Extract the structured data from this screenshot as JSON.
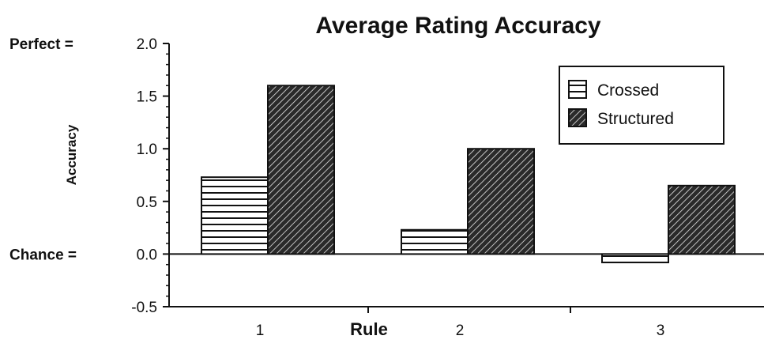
{
  "chart_data": {
    "type": "bar",
    "title": "Average Rating Accuracy",
    "xlabel": "Rule",
    "ylabel": "Accuracy",
    "categories": [
      "1",
      "2",
      "3"
    ],
    "series": [
      {
        "name": "Crossed",
        "values": [
          0.73,
          0.23,
          -0.08
        ]
      },
      {
        "name": "Structured",
        "values": [
          1.6,
          1.0,
          0.65
        ]
      }
    ],
    "ylim": [
      -0.5,
      2.0
    ],
    "yticks": [
      "2.0",
      "1.5",
      "1.0",
      "0.5",
      "0.0",
      "-0.5"
    ],
    "reference_lines": [
      {
        "label": "Perfect =",
        "value": 2.0
      },
      {
        "label": "Chance =",
        "value": 0.0
      }
    ],
    "grid": false,
    "legend_position": "top-right"
  }
}
